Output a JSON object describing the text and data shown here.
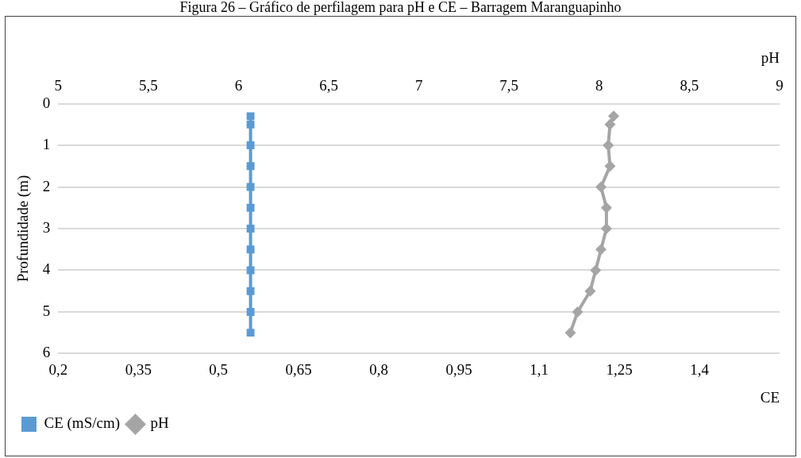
{
  "chart_data": {
    "type": "line",
    "title": "Figura 26 – Gráfico de perfilagem para pH e CE – Barragem Maranguapinho",
    "xlabel": "CE",
    "x2label": "pH",
    "ylabel": "Profundidade (m)",
    "xlim": [
      0.2,
      1.55
    ],
    "xticks": [
      {
        "value": 0.2,
        "label": "0,2"
      },
      {
        "value": 0.35,
        "label": "0,35"
      },
      {
        "value": 0.5,
        "label": "0,5"
      },
      {
        "value": 0.65,
        "label": "0,65"
      },
      {
        "value": 0.8,
        "label": "0,8"
      },
      {
        "value": 0.95,
        "label": "0,95"
      },
      {
        "value": 1.1,
        "label": "1,1"
      },
      {
        "value": 1.25,
        "label": "1,25"
      },
      {
        "value": 1.4,
        "label": "1,4"
      }
    ],
    "x2lim": [
      5,
      9
    ],
    "x2ticks": [
      5,
      {
        "value": 5.5,
        "label": "5,5"
      },
      6,
      {
        "value": 6.5,
        "label": "6,5"
      },
      7,
      {
        "value": 7.5,
        "label": "7,5"
      },
      8,
      {
        "value": 8.5,
        "label": "8,5"
      },
      9
    ],
    "ylim": [
      6,
      0
    ],
    "yticks": [
      0,
      1,
      2,
      3,
      4,
      5,
      6
    ],
    "grid": "y",
    "legend": "bottom left",
    "line_style": "solid",
    "series": [
      {
        "name": "CE (mS/cm)",
        "color": "#5b9bd5",
        "marker": "square",
        "x": [
          0.56,
          0.56,
          0.56,
          0.56,
          0.56,
          0.56,
          0.56,
          0.56,
          0.56,
          0.56,
          0.56,
          0.56
        ],
        "values": [
          0.3,
          0.5,
          1,
          1.5,
          2,
          2.5,
          3,
          3.5,
          4,
          4.5,
          5,
          5.5
        ]
      },
      {
        "name": "pH",
        "color": "#a5a5a5",
        "marker": "diamond",
        "axis": "x2",
        "x": [
          8.08,
          8.06,
          8.05,
          8.06,
          8.01,
          8.04,
          8.04,
          8.01,
          7.98,
          7.95,
          7.88,
          7.84
        ],
        "values": [
          0.3,
          0.5,
          1,
          1.5,
          2,
          2.5,
          3,
          3.5,
          4,
          4.5,
          5,
          5.5
        ]
      }
    ]
  }
}
